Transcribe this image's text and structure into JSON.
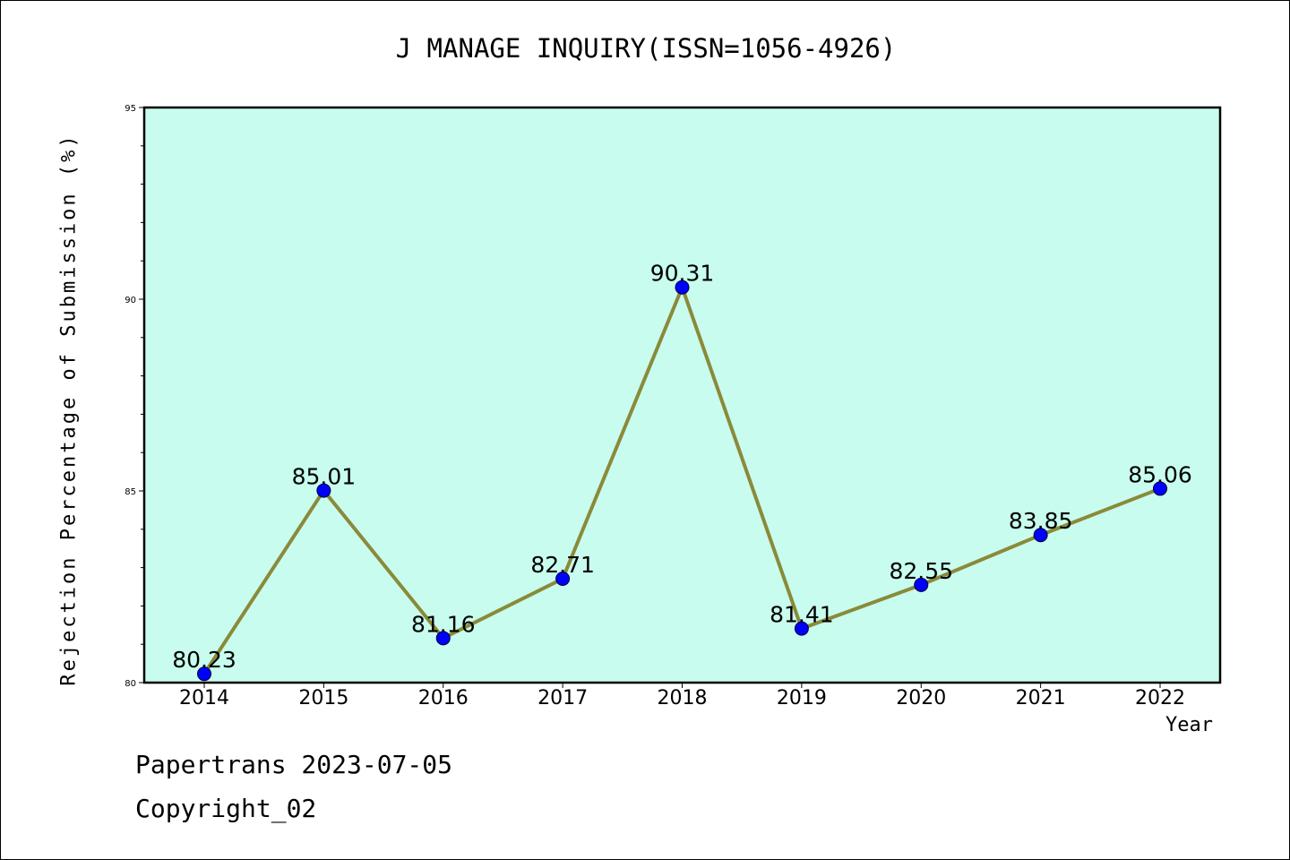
{
  "chart_data": {
    "type": "line",
    "title": "J MANAGE INQUIRY(ISSN=1056-4926)",
    "xlabel": "Year",
    "ylabel": "Rejection Percentage of Submission (%)",
    "categories": [
      "2014",
      "2015",
      "2016",
      "2017",
      "2018",
      "2019",
      "2020",
      "2021",
      "2022"
    ],
    "series": [
      {
        "values": [
          80.23,
          85.01,
          81.16,
          82.71,
          90.31,
          81.41,
          82.55,
          83.85,
          85.06
        ],
        "data_labels": [
          "80.23",
          "85.01",
          "81.16",
          "82.71",
          "90.31",
          "81.41",
          "82.55",
          "83.85",
          "85.06"
        ]
      }
    ],
    "ylim": [
      80,
      95
    ],
    "yticks": [
      "80",
      "85",
      "90",
      "95"
    ],
    "grid": false,
    "colors": {
      "plot_background": "#c8fcee",
      "line": "#8a8a3a",
      "marker": "#0000ff"
    }
  },
  "footer": {
    "date_line": "Papertrans 2023-07-05",
    "copyright_line": "Copyright_02"
  }
}
